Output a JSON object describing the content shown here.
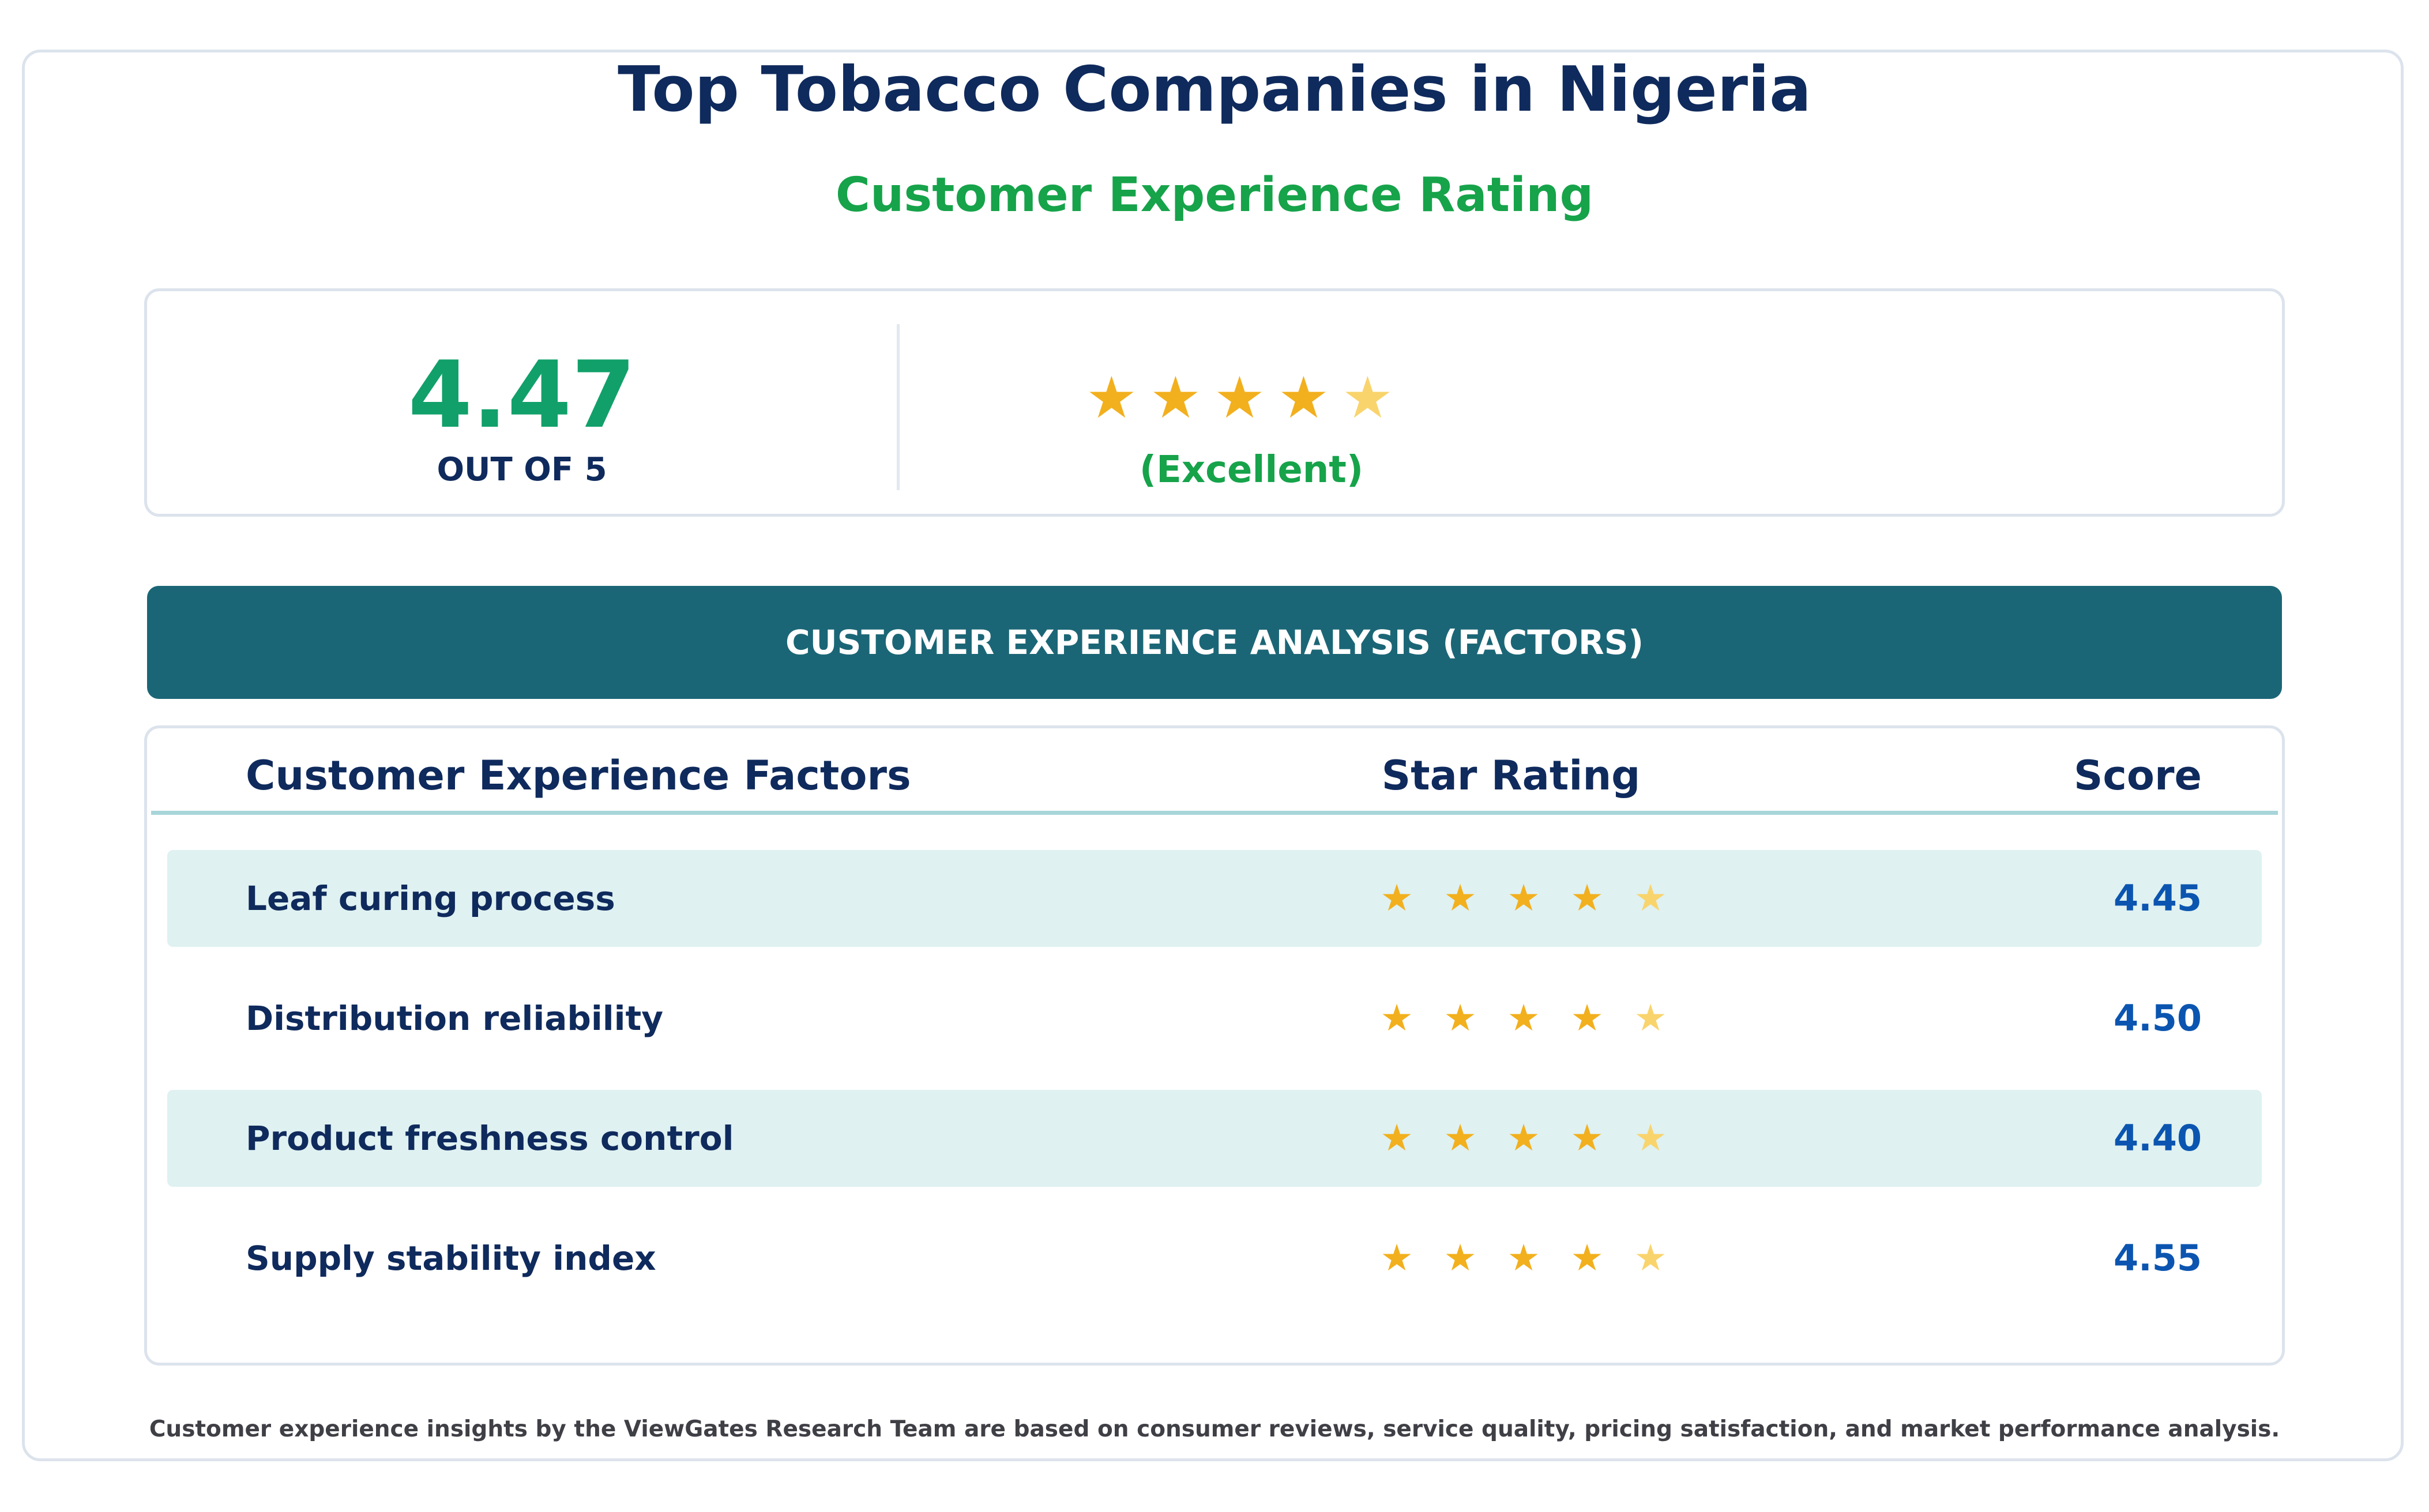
{
  "header": {
    "title": "Top Tobacco Companies in Nigeria",
    "subtitle": "Customer Experience Rating"
  },
  "summary": {
    "score": "4.47",
    "out_of_label": "OUT OF 5",
    "star_rating": 4.47,
    "rating_label": "(Excellent)"
  },
  "banner": {
    "label": "CUSTOMER EXPERIENCE ANALYSIS (FACTORS)"
  },
  "table": {
    "columns": [
      "Customer Experience Factors",
      "Star Rating",
      "Score"
    ],
    "rows": [
      {
        "factor": "Leaf curing process",
        "score": "4.45",
        "rating": 4.45
      },
      {
        "factor": "Distribution reliability",
        "score": "4.50",
        "rating": 4.5
      },
      {
        "factor": "Product freshness control",
        "score": "4.40",
        "rating": 4.4
      },
      {
        "factor": "Supply stability index",
        "score": "4.55",
        "rating": 4.55
      }
    ]
  },
  "footer": {
    "note": "Customer experience insights by the ViewGates Research Team are based on consumer reviews, service quality, pricing satisfaction, and market performance analysis."
  },
  "colors": {
    "title": "#0f2a5c",
    "accent_green": "#16a34a",
    "banner": "#1b6676",
    "star_full": "#f2b01e",
    "star_partial": "#f9d46d",
    "score_blue": "#0b55b0",
    "row_shade": "#dff1f1"
  },
  "icons": {
    "star": "star-icon"
  }
}
